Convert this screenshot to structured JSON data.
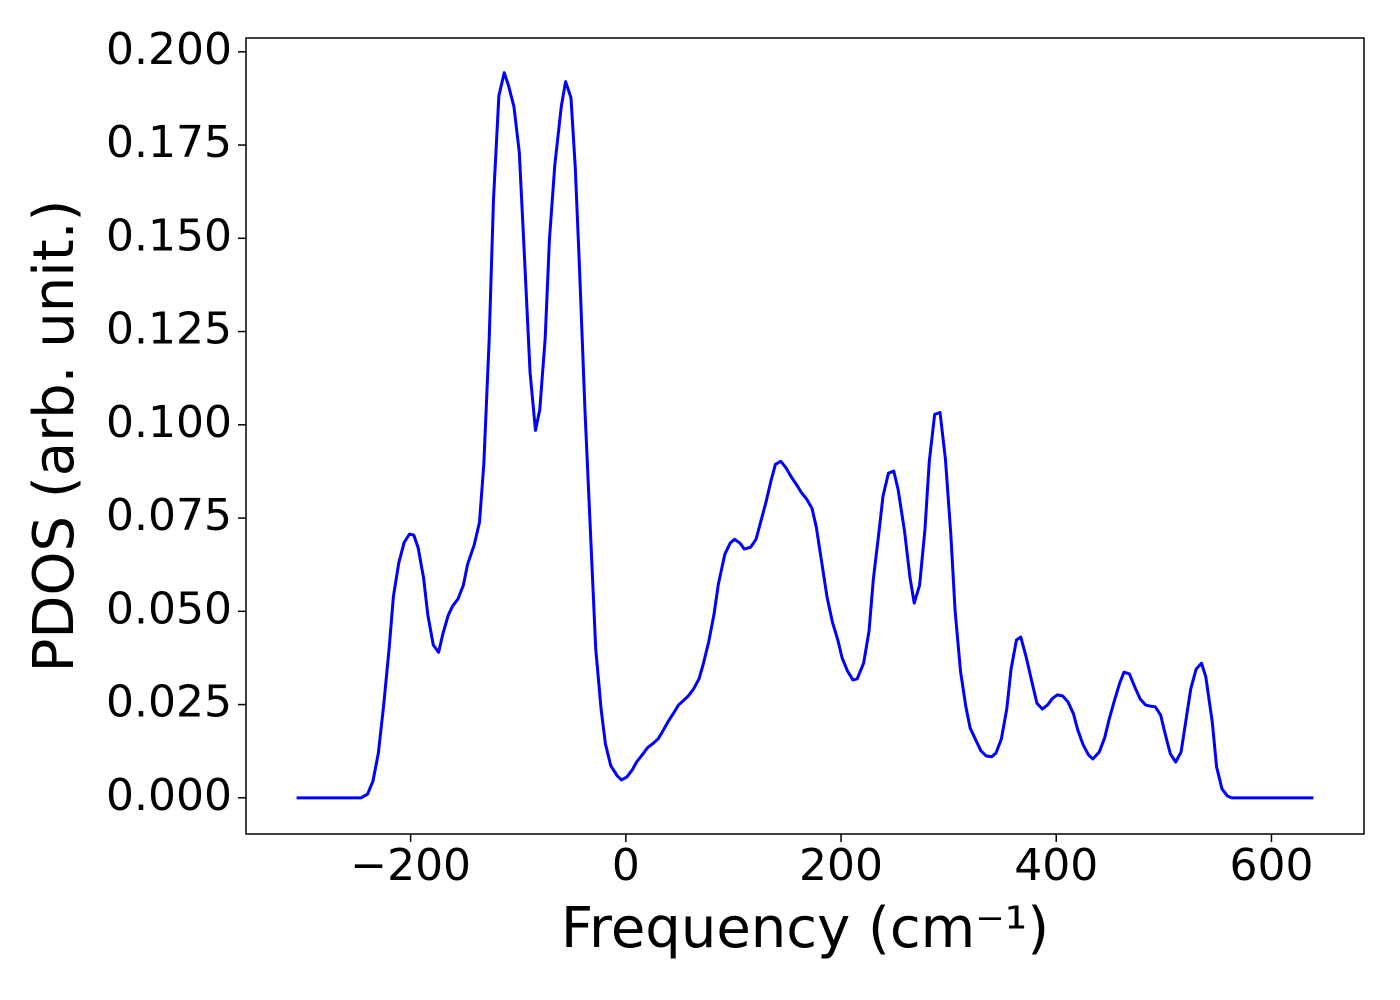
{
  "chart_data": {
    "type": "line",
    "x_label": "Frequency (cm⁻¹)",
    "y_label": "PDOS (arb. unit.)",
    "x": [
      -306,
      -246,
      -240,
      -235,
      -230,
      -225,
      -220,
      -216,
      -211,
      -206,
      -201,
      -197,
      -193,
      -188,
      -184,
      -179,
      -174,
      -170,
      -165,
      -161,
      -156,
      -151,
      -147,
      -141,
      -136,
      -132,
      -127,
      -123,
      -118,
      -113,
      -109,
      -104,
      -99,
      -95,
      -89,
      -84,
      -80,
      -75,
      -71,
      -66,
      -60,
      -56,
      -51,
      -47,
      -43,
      -38,
      -33,
      -28,
      -23,
      -19,
      -14,
      -8,
      -4,
      1,
      6,
      10,
      16,
      20,
      25,
      30,
      34,
      39,
      45,
      49,
      54,
      58,
      63,
      68,
      72,
      77,
      82,
      86,
      92,
      97,
      101,
      106,
      110,
      116,
      121,
      125,
      130,
      135,
      139,
      144,
      149,
      154,
      159,
      163,
      168,
      173,
      177,
      182,
      187,
      192,
      197,
      201,
      206,
      211,
      215,
      221,
      226,
      230,
      235,
      239,
      244,
      249,
      253,
      259,
      264,
      268,
      273,
      278,
      282,
      287,
      292,
      297,
      302,
      306,
      311,
      316,
      320,
      326,
      330,
      335,
      340,
      344,
      349,
      354,
      358,
      363,
      367,
      372,
      378,
      382,
      387,
      392,
      396,
      401,
      406,
      411,
      416,
      420,
      425,
      430,
      434,
      440,
      445,
      449,
      454,
      459,
      463,
      468,
      473,
      478,
      483,
      487,
      492,
      497,
      501,
      506,
      511,
      516,
      520,
      525,
      530,
      535,
      539,
      545,
      549,
      554,
      559,
      563,
      639
    ],
    "series": [
      {
        "name": "PDOS",
        "color": "#0000ff",
        "values": [
          0,
          0,
          0.001,
          0.0045,
          0.012,
          0.025,
          0.04,
          0.054,
          0.063,
          0.0685,
          0.0707,
          0.0704,
          0.067,
          0.059,
          0.049,
          0.041,
          0.039,
          0.044,
          0.049,
          0.0514,
          0.0533,
          0.057,
          0.0627,
          0.0677,
          0.0739,
          0.0894,
          0.1229,
          0.1604,
          0.1882,
          0.1944,
          0.1909,
          0.1853,
          0.173,
          0.1497,
          0.114,
          0.0985,
          0.104,
          0.123,
          0.1497,
          0.1697,
          0.1853,
          0.192,
          0.1877,
          0.169,
          0.1416,
          0.104,
          0.072,
          0.04,
          0.0238,
          0.0145,
          0.0086,
          0.0059,
          0.0048,
          0.0056,
          0.0075,
          0.0096,
          0.0118,
          0.0134,
          0.0145,
          0.0158,
          0.0177,
          0.0203,
          0.023,
          0.0249,
          0.0262,
          0.0273,
          0.0292,
          0.0319,
          0.0359,
          0.0418,
          0.0493,
          0.0573,
          0.0653,
          0.0683,
          0.0693,
          0.0683,
          0.0667,
          0.0672,
          0.0693,
          0.0736,
          0.079,
          0.0851,
          0.0894,
          0.0902,
          0.0884,
          0.0859,
          0.0838,
          0.0819,
          0.0801,
          0.0776,
          0.0726,
          0.0632,
          0.0538,
          0.0471,
          0.0423,
          0.0375,
          0.034,
          0.0316,
          0.0319,
          0.0361,
          0.0447,
          0.0586,
          0.0707,
          0.0809,
          0.087,
          0.0876,
          0.0827,
          0.0715,
          0.0592,
          0.0522,
          0.057,
          0.072,
          0.0902,
          0.1028,
          0.1033,
          0.0908,
          0.0707,
          0.0501,
          0.034,
          0.0244,
          0.0187,
          0.015,
          0.0126,
          0.0112,
          0.011,
          0.012,
          0.0158,
          0.0238,
          0.0345,
          0.0423,
          0.0431,
          0.0378,
          0.0303,
          0.0254,
          0.0238,
          0.0249,
          0.0265,
          0.0276,
          0.0273,
          0.0257,
          0.0225,
          0.0182,
          0.0142,
          0.0115,
          0.0104,
          0.0123,
          0.0161,
          0.0209,
          0.026,
          0.0308,
          0.0337,
          0.0332,
          0.0297,
          0.0265,
          0.0249,
          0.0246,
          0.0244,
          0.0222,
          0.0174,
          0.0118,
          0.0096,
          0.0123,
          0.0198,
          0.0292,
          0.0345,
          0.0361,
          0.0324,
          0.0203,
          0.0083,
          0.0024,
          0.0005,
          0,
          0
        ]
      }
    ],
    "xlim": [
      -353,
      686
    ],
    "xticks": [
      {
        "value": -200,
        "label": "−200"
      },
      0,
      200,
      400,
      600
    ],
    "ylim": [
      -0.0097,
      0.2037
    ],
    "yticks": [
      {
        "value": 0,
        "label": "0.000"
      },
      {
        "value": 0.025,
        "label": "0.025"
      },
      {
        "value": 0.05,
        "label": "0.050"
      },
      {
        "value": 0.075,
        "label": "0.075"
      },
      {
        "value": 0.1,
        "label": "0.100"
      },
      {
        "value": 0.125,
        "label": "0.125"
      },
      {
        "value": 0.15,
        "label": "0.150"
      },
      {
        "value": 0.175,
        "label": "0.175"
      },
      {
        "value": 0.2,
        "label": "0.200"
      }
    ],
    "grid": false
  }
}
